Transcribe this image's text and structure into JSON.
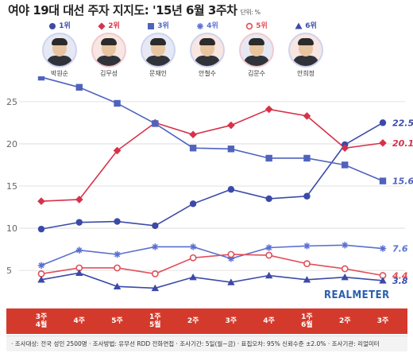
{
  "title": "여야 19대 대선 주자 지지도: '15년 6월 3주차",
  "unit_note": "단위: %",
  "brand": "REALMETER",
  "legend": [
    {
      "rank": "1위",
      "name": "박원순",
      "color": "#3b4aa8",
      "marker": "circle-icon"
    },
    {
      "rank": "2위",
      "name": "김무성",
      "color": "#d6324a",
      "marker": "diamond-icon"
    },
    {
      "rank": "3위",
      "name": "문재인",
      "color": "#4f63bd",
      "marker": "square-icon"
    },
    {
      "rank": "4위",
      "name": "안철수",
      "color": "#5b6fd0",
      "marker": "asterisk-icon"
    },
    {
      "rank": "5위",
      "name": "김문수",
      "color": "#e0505a",
      "marker": "open-circle-icon"
    },
    {
      "rank": "6위",
      "name": "안희정",
      "color": "#3b4aa8",
      "marker": "triangle-icon"
    }
  ],
  "footer": "· 조사대상: 전국 성인 2500명 · 조사방법: 유무선 RDD 전화면접 · 조사기간: 5일(월~금) · 표집오차: 95% 신뢰수준 ±2.0% · 조사기관: 리얼미터",
  "chart_data": {
    "type": "line",
    "categories": [
      "3주\n4월",
      "4주",
      "5주",
      "1주\n5월",
      "2주",
      "3주",
      "4주",
      "1주\n6월",
      "2주",
      "3주"
    ],
    "ylim": [
      2,
      28
    ],
    "yticks": [
      5,
      10,
      15,
      20,
      25
    ],
    "grid": true,
    "series": [
      {
        "name": "박원순",
        "color": "#3b4aa8",
        "marker": "circle",
        "values": [
          9.9,
          10.7,
          10.8,
          10.3,
          12.9,
          14.6,
          13.5,
          13.8,
          19.9,
          22.5
        ],
        "end_label": "22.5"
      },
      {
        "name": "김무성",
        "color": "#d6324a",
        "marker": "diamond",
        "values": [
          13.2,
          13.4,
          19.2,
          22.5,
          21.1,
          22.2,
          24.1,
          23.3,
          19.5,
          20.1
        ],
        "end_label": "20.1"
      },
      {
        "name": "문재인",
        "color": "#4f63bd",
        "marker": "square",
        "values": [
          27.9,
          26.7,
          24.8,
          22.4,
          19.5,
          19.4,
          18.3,
          18.3,
          17.5,
          15.6
        ],
        "end_label": "15.6"
      },
      {
        "name": "안철수",
        "color": "#5b6fd0",
        "marker": "asterisk",
        "values": [
          5.6,
          7.4,
          6.9,
          7.8,
          7.8,
          6.4,
          7.7,
          7.9,
          8.0,
          7.6
        ],
        "end_label": "7.6"
      },
      {
        "name": "김문수",
        "color": "#e0505a",
        "marker": "open-circle",
        "values": [
          4.6,
          5.3,
          5.3,
          4.6,
          6.5,
          6.9,
          6.8,
          5.8,
          5.2,
          4.4
        ],
        "end_label": "4.4"
      },
      {
        "name": "안희정",
        "color": "#3b4aa8",
        "marker": "triangle",
        "values": [
          3.9,
          4.7,
          3.1,
          2.9,
          4.2,
          3.6,
          4.4,
          3.9,
          4.2,
          3.8
        ],
        "end_label": "3.8"
      }
    ]
  }
}
